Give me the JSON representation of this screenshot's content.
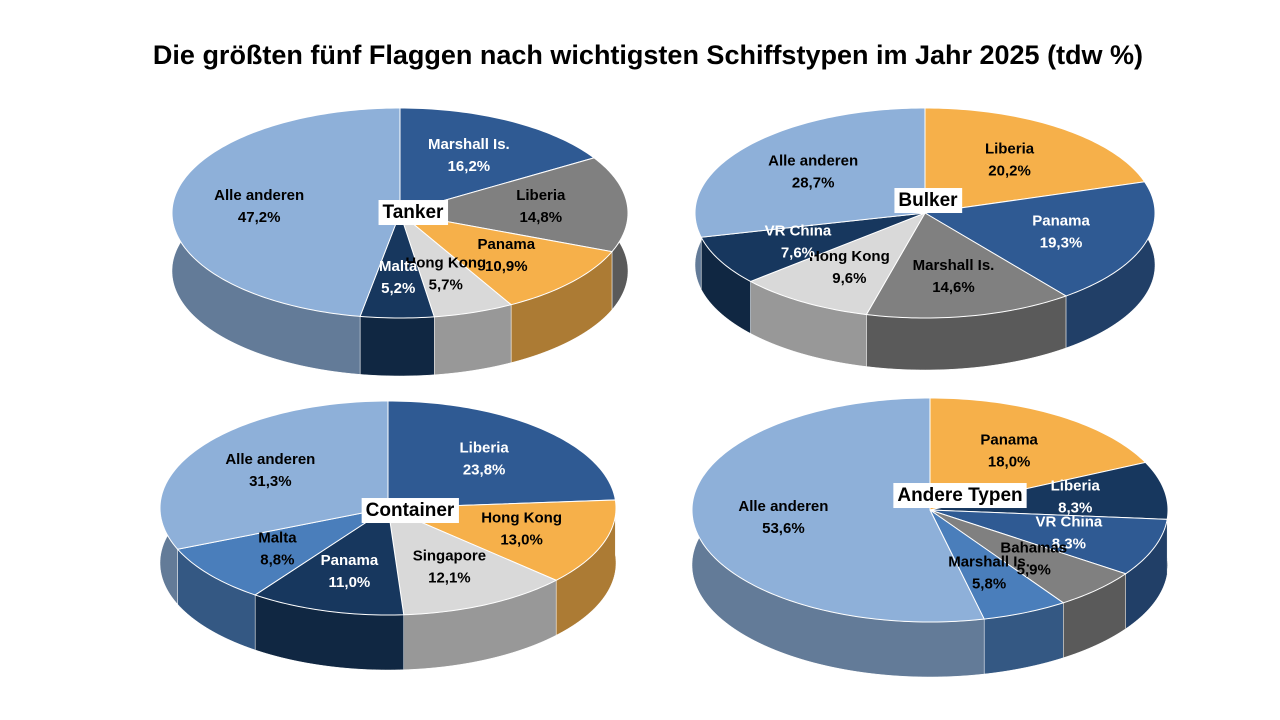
{
  "title": "Die größten fünf Flaggen nach wichtigsten Schiffstypen im Jahr 2025 (tdw %)",
  "chart_data": [
    {
      "type": "pie",
      "title": "Tanker",
      "categories": [
        "Marshall Is.",
        "Liberia",
        "Panama",
        "Hong Kong",
        "Malta",
        "Alle anderen"
      ],
      "values": [
        16.2,
        14.8,
        10.9,
        5.7,
        5.2,
        47.2
      ],
      "value_labels": [
        "16,2%",
        "14,8%",
        "10,9%",
        "5,7%",
        "5,2%",
        "47,2%"
      ],
      "colors": [
        "#2f5a93",
        "#808080",
        "#f6b04a",
        "#d9d9d9",
        "#17375e",
        "#8eb0d9"
      ]
    },
    {
      "type": "pie",
      "title": "Bulker",
      "categories": [
        "Liberia",
        "Panama",
        "Marshall Is.",
        "Hong Kong",
        "VR China",
        "Alle anderen"
      ],
      "values": [
        20.2,
        19.3,
        14.6,
        9.6,
        7.6,
        28.7
      ],
      "value_labels": [
        "20,2%",
        "19,3%",
        "14,6%",
        "9,6%",
        "7,6%",
        "28,7%"
      ],
      "colors": [
        "#f6b04a",
        "#2f5a93",
        "#808080",
        "#d9d9d9",
        "#17375e",
        "#8eb0d9"
      ]
    },
    {
      "type": "pie",
      "title": "Container",
      "categories": [
        "Liberia",
        "Hong Kong",
        "Singapore",
        "Panama",
        "Malta",
        "Alle anderen"
      ],
      "values": [
        23.8,
        13.0,
        12.1,
        11.0,
        8.8,
        31.3
      ],
      "value_labels": [
        "23,8%",
        "13,0%",
        "12,1%",
        "11,0%",
        "8,8%",
        "31,3%"
      ],
      "colors": [
        "#2f5a93",
        "#f6b04a",
        "#d9d9d9",
        "#17375e",
        "#4a7ebb",
        "#8eb0d9"
      ]
    },
    {
      "type": "pie",
      "title": "Andere Typen",
      "categories": [
        "Panama",
        "Liberia",
        "VR China",
        "Bahamas",
        "Marshall Is.",
        "Alle anderen"
      ],
      "values": [
        18.0,
        8.3,
        8.3,
        5.9,
        5.8,
        53.6
      ],
      "value_labels": [
        "18,0%",
        "8,3%",
        "8,3%",
        "5,9%",
        "5,8%",
        "53,6%"
      ],
      "colors": [
        "#f6b04a",
        "#17375e",
        "#2f5a93",
        "#808080",
        "#4a7ebb",
        "#8eb0d9"
      ]
    }
  ]
}
